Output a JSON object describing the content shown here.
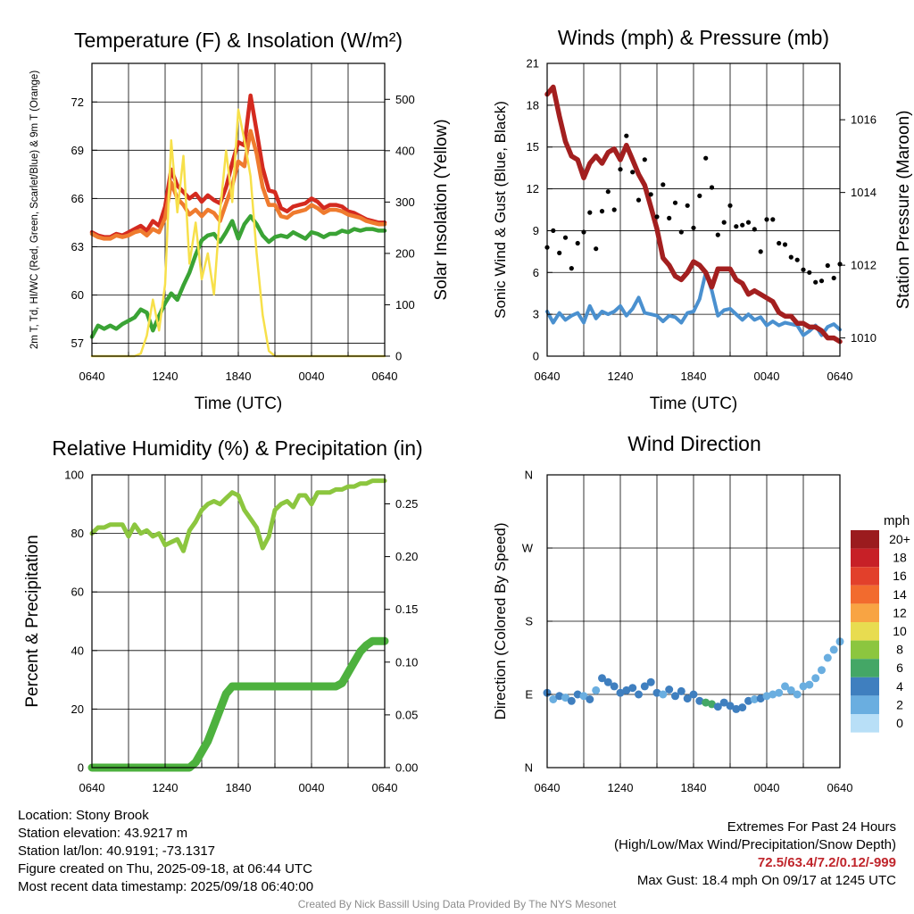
{
  "figure": {
    "credit": "Created By Nick Bassill Using Data Provided By The NYS Mesonet",
    "station_info": {
      "location": "Location: Stony Brook",
      "elevation": "Station elevation: 43.9217 m",
      "latlon": "Station lat/lon: 40.9191; -73.1317",
      "created": "Figure created on Thu, 2025-09-18, at 06:44 UTC",
      "latest": "Most recent data timestamp: 2025/09/18 06:40:00"
    },
    "extremes": {
      "heading": "Extremes For Past 24 Hours",
      "fields": "(High/Low/Max Wind/Precipitation/Snow Depth)",
      "values": "72.5/63.4/7.2/0.12/-999",
      "max_gust": "Max Gust: 18.4 mph On 09/17 at 1245 UTC",
      "values_color": "#c0262c"
    }
  },
  "chart_data": [
    {
      "type": "line",
      "title": "Temperature (F) & Insolation (W/m²)",
      "xlabel": "Time (UTC)",
      "ylabel_left": "2m T, Td, HI/WC (Red, Green, Scarlet/Blue) & 9m T (Orange)",
      "ylabel_right": "Solar Insolation (Yellow)",
      "x_ticks": [
        "0640",
        "1240",
        "1840",
        "0040",
        "0640"
      ],
      "y_left_ticks": [
        57,
        60,
        63,
        66,
        69,
        72
      ],
      "y_left_range": [
        56.2,
        74.4
      ],
      "y_right_ticks": [
        0,
        100,
        200,
        300,
        400,
        500
      ],
      "y_right_range": [
        0,
        570
      ],
      "grid": true,
      "x_hours": [
        0,
        0.5,
        1,
        1.5,
        2,
        2.5,
        3,
        3.5,
        4,
        4.5,
        5,
        5.5,
        6,
        6.5,
        7,
        7.5,
        8,
        8.5,
        9,
        9.5,
        10,
        10.5,
        11,
        11.5,
        12,
        12.5,
        13,
        13.5,
        14,
        14.5,
        15,
        15.5,
        16,
        16.5,
        17,
        17.5,
        18,
        18.5,
        19,
        19.5,
        20,
        20.5,
        21,
        21.5,
        22,
        22.5,
        23,
        23.5,
        24
      ],
      "series": [
        {
          "name": "2m T",
          "color": "#d42a1f",
          "axis": "left",
          "values": [
            63.9,
            63.7,
            63.6,
            63.6,
            63.8,
            63.7,
            63.9,
            64.1,
            64.3,
            64.0,
            64.6,
            64.3,
            65.5,
            67.8,
            66.8,
            66.4,
            66.0,
            66.3,
            65.8,
            66.2,
            65.9,
            65.7,
            66.7,
            68.2,
            69.5,
            69.3,
            72.4,
            70.2,
            67.9,
            66.5,
            66.4,
            65.4,
            65.2,
            65.5,
            65.6,
            65.7,
            66.0,
            65.8,
            65.4,
            65.6,
            65.6,
            65.5,
            65.2,
            65.1,
            64.9,
            64.7,
            64.6,
            64.5,
            64.5
          ]
        },
        {
          "name": "9m T",
          "color": "#ef7b2e",
          "axis": "left",
          "values": [
            63.8,
            63.6,
            63.5,
            63.5,
            63.7,
            63.6,
            63.7,
            63.9,
            64.0,
            63.7,
            64.1,
            63.9,
            64.8,
            67.0,
            66.0,
            65.6,
            65.0,
            65.3,
            64.9,
            65.3,
            65.1,
            64.6,
            65.7,
            66.8,
            68.3,
            68.0,
            70.2,
            68.8,
            66.7,
            65.6,
            65.6,
            64.9,
            64.8,
            65.1,
            65.2,
            65.3,
            65.6,
            65.4,
            65.1,
            65.3,
            65.3,
            65.2,
            65.0,
            64.9,
            64.8,
            64.6,
            64.5,
            64.4,
            64.4
          ]
        },
        {
          "name": "2m Td",
          "color": "#3aa335",
          "axis": "left",
          "values": [
            57.4,
            58.1,
            57.9,
            58.1,
            57.9,
            58.2,
            58.4,
            58.6,
            59.1,
            58.9,
            57.8,
            58.7,
            59.5,
            60.1,
            59.7,
            60.6,
            61.4,
            62.5,
            63.4,
            63.7,
            63.8,
            63.3,
            63.9,
            64.6,
            63.5,
            64.4,
            64.9,
            64.4,
            63.7,
            63.3,
            63.6,
            63.7,
            63.6,
            63.9,
            63.7,
            63.5,
            63.9,
            63.8,
            63.6,
            63.8,
            63.8,
            64.0,
            63.9,
            64.1,
            64.0,
            64.1,
            64.1,
            64.0,
            64.0
          ]
        },
        {
          "name": "Solar Insolation",
          "color": "#f7e04a",
          "axis": "right",
          "values": [
            0,
            0,
            0,
            0,
            0,
            0,
            0,
            0,
            5,
            40,
            110,
            50,
            140,
            420,
            280,
            390,
            180,
            260,
            150,
            200,
            120,
            280,
            400,
            300,
            480,
            420,
            350,
            200,
            80,
            10,
            0,
            0,
            0,
            0,
            0,
            0,
            0,
            0,
            0,
            0,
            0,
            0,
            0,
            0,
            0,
            0,
            0,
            0,
            0
          ]
        }
      ]
    },
    {
      "type": "scatter",
      "title": "Winds (mph) & Pressure (mb)",
      "xlabel": "Time (UTC)",
      "ylabel_left": "Sonic Wind & Gust (Blue, Black)",
      "ylabel_right": "Station Pressure (Maroon)",
      "x_ticks": [
        "0640",
        "1240",
        "1840",
        "0040",
        "0640"
      ],
      "y_left_ticks": [
        0,
        3,
        6,
        9,
        12,
        15,
        18,
        21
      ],
      "y_left_range": [
        0,
        21
      ],
      "y_right_ticks": [
        1010,
        1012,
        1014,
        1016
      ],
      "y_right_range": [
        1009.5,
        1017.55
      ],
      "grid": true,
      "x_hours": [
        0,
        0.5,
        1,
        1.5,
        2,
        2.5,
        3,
        3.5,
        4,
        4.5,
        5,
        5.5,
        6,
        6.5,
        7,
        7.5,
        8,
        8.5,
        9,
        9.5,
        10,
        10.5,
        11,
        11.5,
        12,
        12.5,
        13,
        13.5,
        14,
        14.5,
        15,
        15.5,
        16,
        16.5,
        17,
        17.5,
        18,
        18.5,
        19,
        19.5,
        20,
        20.5,
        21,
        21.5,
        22,
        22.5,
        23,
        23.5,
        24
      ],
      "series": [
        {
          "name": "Sonic Wind",
          "color": "#4a90cf",
          "axis": "left",
          "values": [
            3.2,
            2.4,
            3.1,
            2.6,
            2.9,
            3.1,
            2.4,
            3.6,
            2.7,
            3.2,
            3.0,
            3.2,
            3.6,
            2.9,
            3.4,
            4.2,
            3.1,
            3.0,
            2.9,
            2.5,
            2.9,
            2.8,
            2.4,
            3.1,
            3.2,
            4.1,
            6.0,
            4.7,
            2.9,
            3.3,
            3.4,
            3.0,
            2.6,
            3.0,
            2.6,
            2.8,
            2.2,
            2.5,
            2.2,
            2.4,
            2.3,
            2.2,
            1.5,
            1.8,
            2.2,
            1.5,
            2.1,
            2.3,
            1.9
          ]
        },
        {
          "name": "Station Pressure",
          "color": "#a31f1f",
          "axis": "right",
          "values": [
            1016.7,
            1016.9,
            1016.1,
            1015.4,
            1015.0,
            1014.9,
            1014.4,
            1014.8,
            1015.0,
            1014.8,
            1015.1,
            1015.2,
            1014.9,
            1015.3,
            1014.9,
            1014.5,
            1014.2,
            1013.6,
            1013.0,
            1012.2,
            1012.0,
            1011.7,
            1011.6,
            1011.8,
            1012.1,
            1012.0,
            1011.8,
            1011.4,
            1011.9,
            1011.9,
            1011.9,
            1011.6,
            1011.5,
            1011.2,
            1011.3,
            1011.2,
            1011.1,
            1011.0,
            1010.7,
            1010.6,
            1010.6,
            1010.4,
            1010.4,
            1010.3,
            1010.3,
            1010.2,
            1010.0,
            1010.0,
            1009.9
          ]
        },
        {
          "name": "Gust",
          "color": "#000000",
          "axis": "left",
          "values": [
            7.8,
            9.0,
            7.4,
            8.5,
            6.3,
            8.1,
            8.9,
            10.3,
            7.7,
            10.4,
            11.8,
            10.5,
            13.4,
            15.8,
            13.2,
            11.2,
            14.1,
            11.6,
            10.0,
            12.3,
            9.9,
            11.0,
            8.9,
            10.8,
            9.2,
            11.5,
            14.2,
            12.1,
            8.7,
            9.6,
            10.8,
            9.3,
            9.4,
            9.6,
            9.1,
            7.5,
            9.8,
            9.8,
            8.1,
            8.0,
            7.1,
            6.9,
            6.2,
            6.0,
            5.3,
            5.4,
            6.5,
            5.6,
            6.6
          ]
        }
      ]
    },
    {
      "type": "line",
      "title": "Relative Humidity (%) & Precipitation (in)",
      "ylabel_left": "Percent & Precipitation",
      "x_ticks": [
        "0640",
        "1240",
        "1840",
        "0040",
        "0640"
      ],
      "y_left_ticks": [
        0,
        20,
        40,
        60,
        80,
        100
      ],
      "y_left_range": [
        0,
        100
      ],
      "y_right_ticks": [
        "0.00",
        "0.05",
        "0.10",
        "0.15",
        "0.20",
        "0.25"
      ],
      "y_right_range": [
        0,
        0.2775
      ],
      "grid": true,
      "x_hours": [
        0,
        0.5,
        1,
        1.5,
        2,
        2.5,
        3,
        3.5,
        4,
        4.5,
        5,
        5.5,
        6,
        6.5,
        7,
        7.5,
        8,
        8.5,
        9,
        9.5,
        10,
        10.5,
        11,
        11.5,
        12,
        12.5,
        13,
        13.5,
        14,
        14.5,
        15,
        15.5,
        16,
        16.5,
        17,
        17.5,
        18,
        18.5,
        19,
        19.5,
        20,
        20.5,
        21,
        21.5,
        22,
        22.5,
        23,
        23.5,
        24
      ],
      "series": [
        {
          "name": "Relative Humidity",
          "color": "#8cc63f",
          "axis": "left",
          "values": [
            80,
            82,
            82,
            83,
            83,
            83,
            79,
            83,
            80,
            81,
            79,
            80,
            76,
            77,
            78,
            74,
            81,
            84,
            88,
            90,
            91,
            90,
            92,
            94,
            93,
            88,
            85,
            82,
            75,
            79,
            88,
            90,
            91,
            89,
            93,
            93,
            90,
            94,
            94,
            94,
            95,
            95,
            96,
            96,
            97,
            97,
            98,
            98,
            98
          ]
        },
        {
          "name": "Precipitation",
          "color": "#4db13e",
          "axis": "right",
          "values": [
            0,
            0,
            0,
            0,
            0,
            0,
            0,
            0,
            0,
            0,
            0,
            0,
            0,
            0,
            0,
            0,
            0,
            0.005,
            0.015,
            0.025,
            0.04,
            0.055,
            0.07,
            0.077,
            0.077,
            0.077,
            0.077,
            0.077,
            0.077,
            0.077,
            0.077,
            0.077,
            0.077,
            0.077,
            0.077,
            0.077,
            0.077,
            0.077,
            0.077,
            0.077,
            0.077,
            0.08,
            0.09,
            0.1,
            0.11,
            0.116,
            0.12,
            0.12,
            0.12
          ]
        }
      ]
    },
    {
      "type": "scatter",
      "title": "Wind Direction",
      "ylabel_left": "Direction (Colored By Speed)",
      "x_ticks": [
        "0640",
        "1240",
        "1840",
        "0040",
        "0640"
      ],
      "y_ticks": [
        "N",
        "E",
        "S",
        "W",
        "N"
      ],
      "y_range_deg": [
        0,
        360
      ],
      "grid": true,
      "legend_title": "mph",
      "legend_labels": [
        "20+",
        "18",
        "16",
        "14",
        "12",
        "10",
        "8",
        "6",
        "4",
        "2",
        "0"
      ],
      "legend_colors": [
        "#9b1b1e",
        "#c72027",
        "#e2402b",
        "#f26b2e",
        "#f8a443",
        "#e8dc50",
        "#8cc63f",
        "#44a766",
        "#3f7fbf",
        "#6aaee0",
        "#b8dff7"
      ],
      "legend_placement": "right",
      "x_hours": [
        0,
        0.5,
        1,
        1.5,
        2,
        2.5,
        3,
        3.5,
        4,
        4.5,
        5,
        5.5,
        6,
        6.5,
        7,
        7.5,
        8,
        8.5,
        9,
        9.5,
        10,
        10.5,
        11,
        11.5,
        12,
        12.5,
        13,
        13.5,
        14,
        14.5,
        15,
        15.5,
        16,
        16.5,
        17,
        17.5,
        18,
        18.5,
        19,
        19.5,
        20,
        20.5,
        21,
        21.5,
        22,
        22.5,
        23,
        23.5,
        24
      ],
      "direction_deg": [
        92,
        84,
        88,
        86,
        82,
        90,
        88,
        84,
        95,
        110,
        105,
        100,
        92,
        95,
        98,
        90,
        100,
        105,
        92,
        90,
        96,
        88,
        94,
        85,
        90,
        82,
        80,
        78,
        75,
        80,
        76,
        72,
        74,
        82,
        84,
        85,
        88,
        90,
        92,
        100,
        95,
        90,
        100,
        102,
        110,
        120,
        135,
        145,
        155
      ],
      "speed_mph": [
        3,
        2,
        3,
        2,
        3,
        3,
        2,
        3,
        2,
        3,
        3,
        3,
        4,
        3,
        3,
        4,
        3,
        3,
        3,
        2,
        3,
        3,
        3,
        3,
        3,
        4,
        5,
        6,
        4,
        3,
        4,
        3,
        3,
        3,
        2,
        3,
        2,
        2,
        2,
        2,
        2,
        2,
        1,
        2,
        2,
        1,
        2,
        2,
        2
      ]
    }
  ]
}
